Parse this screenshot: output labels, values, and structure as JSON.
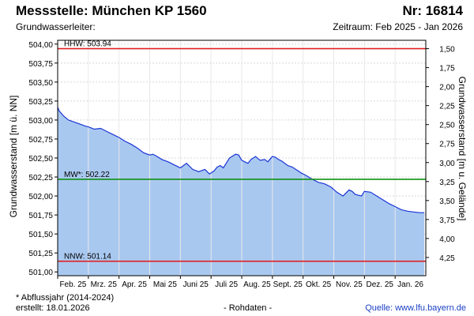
{
  "header": {
    "title": "Messstelle: München KP 1560",
    "number": "Nr: 16814",
    "aquifer": "Grundwasserleiter:",
    "period": "Zeitraum: Feb 2025 - Jan 2026"
  },
  "footer": {
    "footnote": "* Abflussjahr (2014-2024)",
    "created": "erstellt:  18.01.2026",
    "rawdata": "- Rohdaten -",
    "source": "Quelle:  www.lfu.bayern.de"
  },
  "colors": {
    "area_fill": "#a9c8f0",
    "line": "#1a35d6",
    "hhw": "#e02020",
    "nnw": "#e02020",
    "mw": "#109010",
    "grid": "#d8d8d8"
  },
  "chart_data": {
    "type": "area",
    "ylabel": "Grundwasserstand [m ü. NN]",
    "ylabel_right": "Grundwasserstand [m u. Gelände]",
    "ylim": [
      500.95,
      504.05
    ],
    "y_ticks": [
      "504,00",
      "503,75",
      "503,50",
      "503,25",
      "503,00",
      "502,75",
      "502,50",
      "502,25",
      "502,00",
      "501,75",
      "501,50",
      "501,25",
      "501,00"
    ],
    "y_tick_values": [
      504.0,
      503.75,
      503.5,
      503.25,
      503.0,
      502.75,
      502.5,
      502.25,
      502.0,
      501.75,
      501.5,
      501.25,
      501.0
    ],
    "y2_ticks": [
      "1,50",
      "1,75",
      "2,00",
      "2,25",
      "2,50",
      "2,75",
      "3,00",
      "3,25",
      "3,50",
      "3,75",
      "4,00",
      "4,25"
    ],
    "y2_tick_values": [
      1.5,
      1.75,
      2.0,
      2.25,
      2.5,
      2.75,
      3.0,
      3.25,
      3.5,
      3.75,
      4.0,
      4.25
    ],
    "y2_offset": 505.44,
    "x_ticks": [
      "Feb. 25",
      "Mrz. 25",
      "Apr. 25",
      "Mai 25",
      "Juni 25",
      "Juli 25",
      "Aug. 25",
      "Sept. 25",
      "Okt. 25",
      "Nov. 25",
      "Dez. 25",
      "Jan. 26"
    ],
    "x_range_months": [
      0,
      12
    ],
    "reference_lines": [
      {
        "label": "HHW: 503.94",
        "value": 503.94,
        "color": "#e02020"
      },
      {
        "label": "MW*: 502.22",
        "value": 502.22,
        "color": "#109010"
      },
      {
        "label": "NNW: 501.14",
        "value": 501.14,
        "color": "#e02020"
      }
    ],
    "series": [
      {
        "x": [
          0.0,
          0.05,
          0.2,
          0.35,
          0.5,
          0.7,
          0.9,
          1.0,
          1.2,
          1.4,
          1.6,
          1.8,
          2.0,
          2.2,
          2.4,
          2.6,
          2.8,
          3.0,
          3.1,
          3.2,
          3.4,
          3.6,
          3.8,
          4.0,
          4.2,
          4.4,
          4.6,
          4.8,
          4.95,
          5.1,
          5.2,
          5.3,
          5.4,
          5.6,
          5.8,
          5.9,
          6.0,
          6.1,
          6.2,
          6.3,
          6.45,
          6.6,
          6.75,
          6.85,
          7.0,
          7.1,
          7.2,
          7.3,
          7.5,
          7.65,
          7.8,
          7.95,
          8.1,
          8.3,
          8.5,
          8.7,
          8.9,
          9.1,
          9.3,
          9.5,
          9.6,
          9.7,
          9.9,
          10.0,
          10.2,
          10.4,
          10.6,
          10.8,
          11.0,
          11.2,
          11.4,
          11.6,
          11.8,
          11.95
        ],
        "values": [
          503.17,
          503.12,
          503.05,
          503.0,
          502.98,
          502.95,
          502.92,
          502.91,
          502.88,
          502.89,
          502.85,
          502.81,
          502.77,
          502.72,
          502.68,
          502.63,
          502.57,
          502.54,
          502.55,
          502.53,
          502.48,
          502.45,
          502.41,
          502.37,
          502.43,
          502.35,
          502.32,
          502.35,
          502.29,
          502.33,
          502.38,
          502.4,
          502.37,
          502.5,
          502.55,
          502.54,
          502.47,
          502.45,
          502.43,
          502.48,
          502.52,
          502.47,
          502.48,
          502.45,
          502.52,
          502.51,
          502.48,
          502.46,
          502.4,
          502.38,
          502.34,
          502.3,
          502.27,
          502.22,
          502.18,
          502.16,
          502.12,
          502.05,
          502.0,
          502.08,
          502.06,
          502.02,
          502.0,
          502.06,
          502.05,
          502.0,
          501.95,
          501.9,
          501.86,
          501.82,
          501.8,
          501.79,
          501.78,
          501.78
        ]
      }
    ]
  }
}
